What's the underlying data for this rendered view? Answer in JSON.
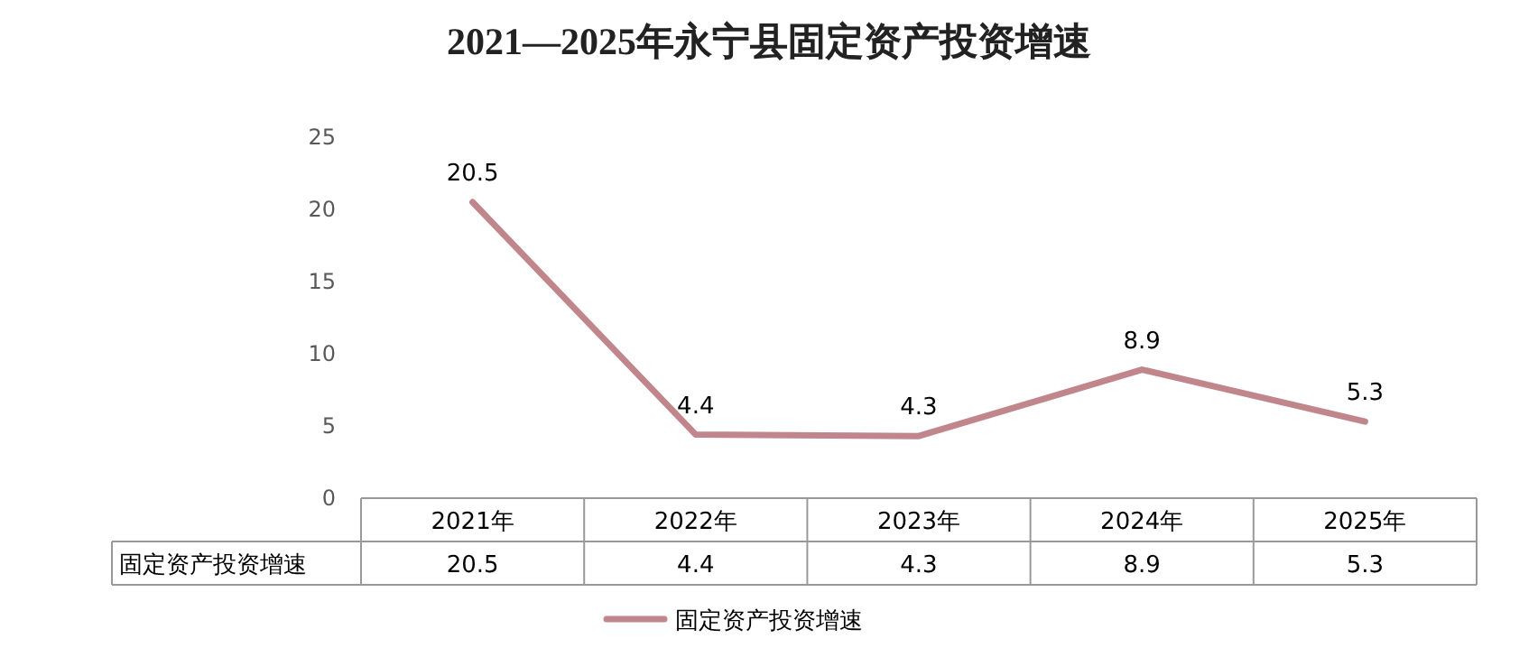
{
  "chart_data": {
    "type": "line",
    "title": "2021—2025年永宁县固定资产投资增速",
    "categories": [
      "2021年",
      "2022年",
      "2023年",
      "2024年",
      "2025年"
    ],
    "series": [
      {
        "name": "固定资产投资增速",
        "color": "#c0868c",
        "values": [
          20.5,
          4.4,
          4.3,
          8.9,
          5.3
        ],
        "value_labels": [
          "20.5",
          "4.4",
          "4.3",
          "8.9",
          "5.3"
        ]
      }
    ],
    "annotations": [
      {
        "text": "20.5",
        "x": "2021年",
        "y": 20.5
      },
      {
        "text": "4.4",
        "x": "2022年",
        "y": 4.4
      },
      {
        "text": "4.3",
        "x": "2023年",
        "y": 4.3
      },
      {
        "text": "8.9",
        "x": "2024年",
        "y": 8.9
      },
      {
        "text": "5.3",
        "x": "2025年",
        "y": 5.3
      }
    ],
    "ylim": [
      0,
      25
    ],
    "yticks": [
      0,
      5,
      10,
      15,
      20,
      25
    ],
    "legend": "bottom"
  }
}
